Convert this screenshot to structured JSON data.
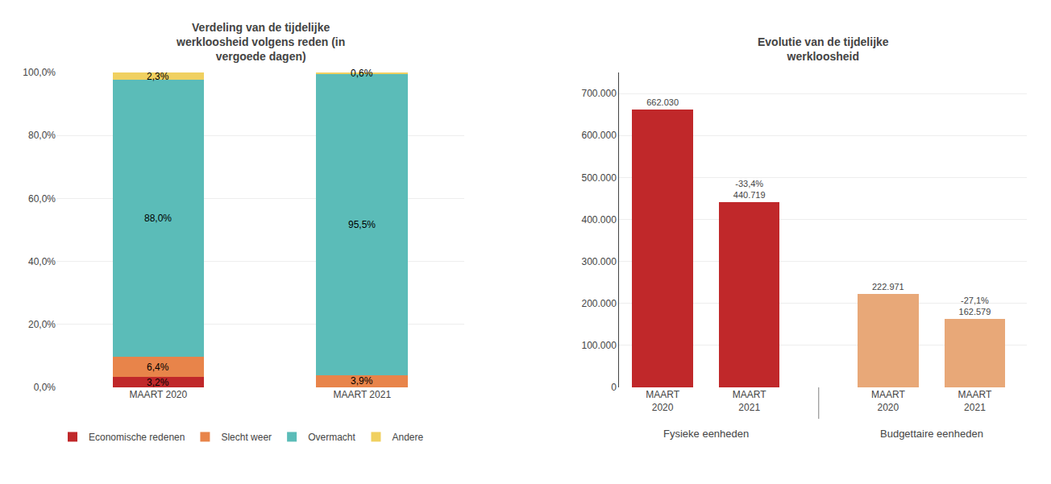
{
  "chart_data": [
    {
      "type": "bar",
      "stacked": true,
      "title": "Verdeling van de tijdelijke\nwerkloosheid volgens reden (in\nvergoede dagen)",
      "categories": [
        "MAART 2020",
        "MAART 2021"
      ],
      "series": [
        {
          "name": "Economische redenen",
          "color": "#C0282A",
          "values": [
            3.2,
            0.0
          ],
          "value_labels": [
            "3,2%",
            null
          ]
        },
        {
          "name": "Slecht weer",
          "color": "#E8844A",
          "values": [
            6.4,
            3.9
          ],
          "value_labels": [
            "6,4%",
            "3,9%"
          ]
        },
        {
          "name": "Overmacht",
          "color": "#5BBCB8",
          "values": [
            88.0,
            95.5
          ],
          "value_labels": [
            "88,0%",
            "95,5%"
          ]
        },
        {
          "name": "Andere",
          "color": "#F0D060",
          "values": [
            2.3,
            0.6
          ],
          "value_labels": [
            "2,3%",
            "0,6%"
          ]
        }
      ],
      "ylim": [
        0,
        100
      ],
      "yticks": [
        {
          "value": 0,
          "label": "0,0%"
        },
        {
          "value": 20,
          "label": "20,0%"
        },
        {
          "value": 40,
          "label": "40,0%"
        },
        {
          "value": 60,
          "label": "60,0%"
        },
        {
          "value": 80,
          "label": "80,0%"
        },
        {
          "value": 100,
          "label": "100,0%"
        }
      ],
      "grid": true,
      "legend": "lower left",
      "data_labels": true
    },
    {
      "type": "bar",
      "title": "Evolutie van de tijdelijke\nwerkloosheid",
      "categories": [
        "MAART\n2020",
        "MAART\n2021",
        "MAART\n2020",
        "MAART\n2021"
      ],
      "groups": [
        "Fysieke eenheden",
        "Fysieke eenheden",
        "Budgettaire eenheden",
        "Budgettaire eenheden"
      ],
      "values": [
        662030,
        440719,
        222971,
        162579
      ],
      "colors": [
        "#C0282A",
        "#C0282A",
        "#E8A878",
        "#E8A878"
      ],
      "value_labels": [
        "662.030",
        "440.719",
        "222.971",
        "162.579"
      ],
      "change_labels": [
        null,
        "-33,4%",
        null,
        "-27,1%"
      ],
      "ylim": [
        0,
        750000
      ],
      "yticks": [
        0,
        {
          "value": 100000,
          "label": "100.000"
        },
        {
          "value": 200000,
          "label": "200.000"
        },
        {
          "value": 300000,
          "label": "300.000"
        },
        {
          "value": 400000,
          "label": "400.000"
        },
        {
          "value": 500000,
          "label": "500.000"
        },
        {
          "value": 600000,
          "label": "600.000"
        },
        {
          "value": 700000,
          "label": "700.000"
        }
      ],
      "grid": true,
      "data_labels": true
    }
  ]
}
